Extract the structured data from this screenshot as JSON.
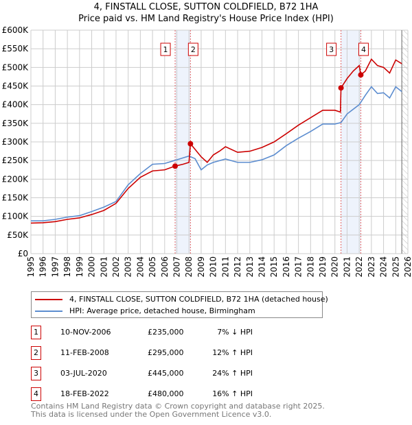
{
  "title": "4, FINSTALL CLOSE, SUTTON COLDFIELD, B72 1HA",
  "subtitle": "Price paid vs. HM Land Registry's House Price Index (HPI)",
  "chart_data": {
    "type": "line",
    "title": "4, FINSTALL CLOSE, SUTTON COLDFIELD, B72 1HA",
    "subtitle": "Price paid vs. HM Land Registry's House Price Index (HPI)",
    "xlim": [
      1995,
      2026
    ],
    "ylim": [
      0,
      600000
    ],
    "x_ticks": [
      "1995",
      "1996",
      "1997",
      "1998",
      "1999",
      "2000",
      "2001",
      "2002",
      "2003",
      "2004",
      "2005",
      "2006",
      "2007",
      "2008",
      "2009",
      "2010",
      "2011",
      "2012",
      "2013",
      "2014",
      "2015",
      "2016",
      "2017",
      "2018",
      "2019",
      "2020",
      "2021",
      "2022",
      "2023",
      "2024",
      "2025",
      "2026"
    ],
    "y_ticks": [
      "£0",
      "£50K",
      "£100K",
      "£150K",
      "£200K",
      "£250K",
      "£300K",
      "£350K",
      "£400K",
      "£450K",
      "£500K",
      "£550K",
      "£600K"
    ],
    "grid": true,
    "series": [
      {
        "name": "4, FINSTALL CLOSE, SUTTON COLDFIELD, B72 1HA (detached house)",
        "color": "#cc0000",
        "x": [
          1995,
          1996,
          1997,
          1998,
          1999,
          2000,
          2001,
          2002,
          2003,
          2004,
          2005,
          2006,
          2006.86,
          2007.5,
          2008.0,
          2008.12,
          2008.5,
          2009,
          2009.5,
          2010,
          2010.5,
          2011,
          2012,
          2013,
          2014,
          2015,
          2016,
          2017,
          2018,
          2019,
          2020,
          2020.45,
          2020.5,
          2021,
          2021.5,
          2022.0,
          2022.13,
          2022.5,
          2023,
          2023.5,
          2024,
          2024.5,
          2025,
          2025.5
        ],
        "y": [
          82000,
          83000,
          86000,
          92000,
          96000,
          105000,
          116000,
          135000,
          175000,
          205000,
          222000,
          225000,
          235000,
          240000,
          245000,
          295000,
          280000,
          260000,
          245000,
          265000,
          275000,
          287000,
          272000,
          275000,
          285000,
          300000,
          322000,
          345000,
          365000,
          385000,
          385000,
          380000,
          445000,
          470000,
          490000,
          505000,
          480000,
          490000,
          522000,
          505000,
          500000,
          485000,
          520000,
          510000
        ]
      },
      {
        "name": "HPI: Average price, detached house, Birmingham",
        "color": "#5b8ccf",
        "x": [
          1995,
          1996,
          1997,
          1998,
          1999,
          2000,
          2001,
          2002,
          2003,
          2004,
          2005,
          2006,
          2007,
          2008,
          2008.5,
          2009,
          2009.5,
          2010,
          2011,
          2012,
          2013,
          2014,
          2015,
          2016,
          2017,
          2018,
          2019,
          2020,
          2020.5,
          2021,
          2022,
          2022.5,
          2023,
          2023.5,
          2024,
          2024.5,
          2025,
          2025.5
        ],
        "y": [
          88000,
          88000,
          92000,
          98000,
          102000,
          113000,
          125000,
          140000,
          185000,
          215000,
          240000,
          242000,
          252000,
          262000,
          255000,
          225000,
          238000,
          245000,
          254000,
          245000,
          245000,
          252000,
          265000,
          290000,
          310000,
          328000,
          348000,
          348000,
          352000,
          375000,
          400000,
          425000,
          448000,
          430000,
          432000,
          418000,
          448000,
          435000
        ]
      }
    ],
    "sales": [
      {
        "label": "1",
        "x": 2006.86,
        "price": 235000
      },
      {
        "label": "2",
        "x": 2008.12,
        "price": 295000
      },
      {
        "label": "3",
        "x": 2020.5,
        "price": 445000
      },
      {
        "label": "4",
        "x": 2022.13,
        "price": 480000
      }
    ],
    "shaded": [
      [
        2006.86,
        2008.12
      ],
      [
        2020.5,
        2022.13
      ]
    ],
    "forecast_start": 2025.5
  },
  "legend": [
    {
      "label": "4, FINSTALL CLOSE, SUTTON COLDFIELD, B72 1HA (detached house)",
      "color": "#cc0000"
    },
    {
      "label": "HPI: Average price, detached house, Birmingham",
      "color": "#5b8ccf"
    }
  ],
  "transactions": [
    {
      "num": "1",
      "date": "10-NOV-2006",
      "price": "£235,000",
      "hpi": "7% ↓ HPI"
    },
    {
      "num": "2",
      "date": "11-FEB-2008",
      "price": "£295,000",
      "hpi": "12% ↑ HPI"
    },
    {
      "num": "3",
      "date": "03-JUL-2020",
      "price": "£445,000",
      "hpi": "24% ↑ HPI"
    },
    {
      "num": "4",
      "date": "18-FEB-2022",
      "price": "£480,000",
      "hpi": "16% ↑ HPI"
    }
  ],
  "footer": [
    "Contains HM Land Registry data © Crown copyright and database right 2025.",
    "This data is licensed under the Open Government Licence v3.0."
  ]
}
